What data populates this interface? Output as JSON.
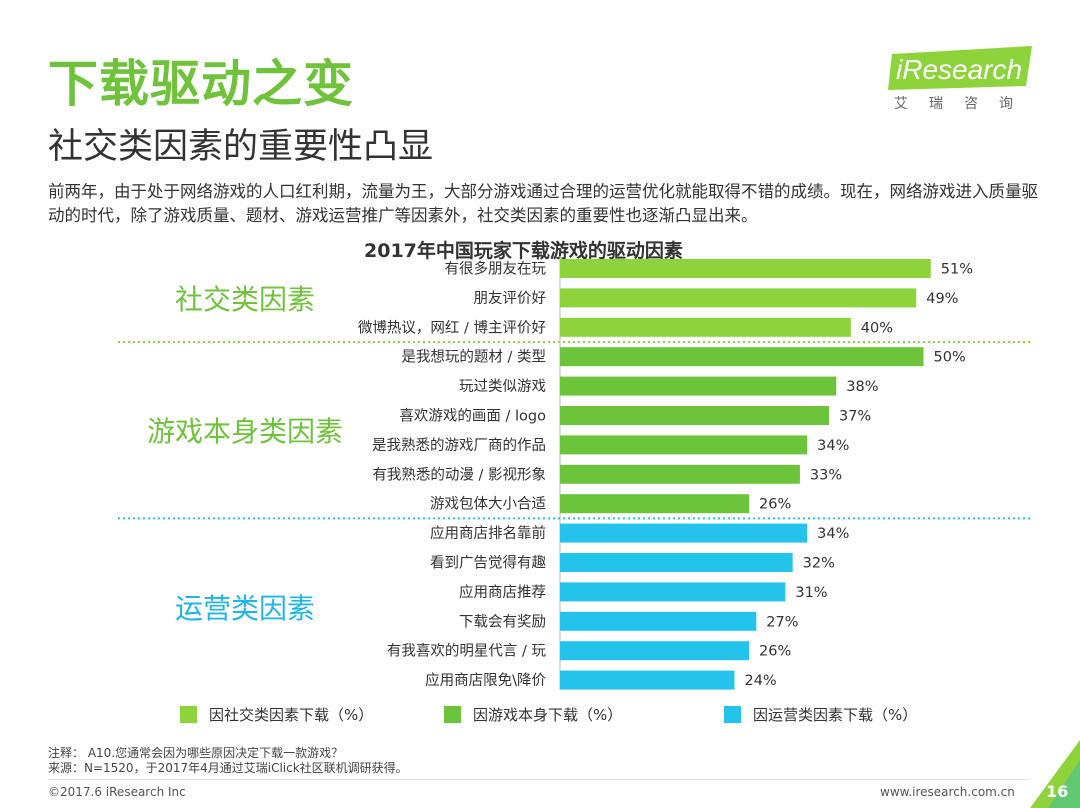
{
  "title": "下载驱动之变",
  "subtitle": "社交类因素的重要性凸显",
  "intro": "前两年，由于处于网络游戏的人口红利期，流量为王，大部分游戏通过合理的运营优化就能取得不错的成绩。现在，网络游戏进入质量驱动的时代，除了游戏质量、题材、游戏运营推广等因素外，社交类因素的重要性也逐渐凸显出来。",
  "logo": {
    "text": "iResearch",
    "sub": "艾瑞咨询"
  },
  "colors": {
    "social": "#8dd43c",
    "game": "#6cc43a",
    "ops": "#24c3ec",
    "title": "#6fc33a"
  },
  "chart_data": {
    "type": "bar",
    "orientation": "horizontal",
    "title": "2017年中国玩家下载游戏的驱动因素",
    "unit": "%",
    "groups": [
      {
        "name": "社交类因素",
        "legend": "因社交类因素下载（%）",
        "color": "#8dd43c",
        "items": [
          {
            "label": "有很多朋友在玩",
            "value": 51
          },
          {
            "label": "朋友评价好",
            "value": 49
          },
          {
            "label": "微博热议，网红 / 博主评价好",
            "value": 40
          }
        ]
      },
      {
        "name": "游戏本身类因素",
        "legend": "因游戏本身下载（%）",
        "color": "#6cc43a",
        "items": [
          {
            "label": "是我想玩的题材 / 类型",
            "value": 50
          },
          {
            "label": "玩过类似游戏",
            "value": 38
          },
          {
            "label": "喜欢游戏的画面 / logo",
            "value": 37
          },
          {
            "label": "是我熟悉的游戏厂商的作品",
            "value": 34
          },
          {
            "label": "有我熟悉的动漫 / 影视形象",
            "value": 33
          },
          {
            "label": "游戏包体大小合适",
            "value": 26
          }
        ]
      },
      {
        "name": "运营类因素",
        "legend": "因运营类因素下载（%）",
        "color": "#24c3ec",
        "items": [
          {
            "label": "应用商店排名靠前",
            "value": 34
          },
          {
            "label": "看到广告觉得有趣",
            "value": 32
          },
          {
            "label": "应用商店推荐",
            "value": 31
          },
          {
            "label": "下载会有奖励",
            "value": 27
          },
          {
            "label": "有我喜欢的明星代言 / 玩",
            "value": 26
          },
          {
            "label": "应用商店限免\\降价",
            "value": 24
          }
        ]
      }
    ]
  },
  "note": "注释： A10.您通常会因为哪些原因决定下载一款游戏？",
  "source": "来源：N=1520，于2017年4月通过艾瑞iClick社区联机调研获得。",
  "footer_left": "©2017.6 iResearch Inc",
  "footer_right": "www.iresearch.com.cn",
  "page_number": "16"
}
